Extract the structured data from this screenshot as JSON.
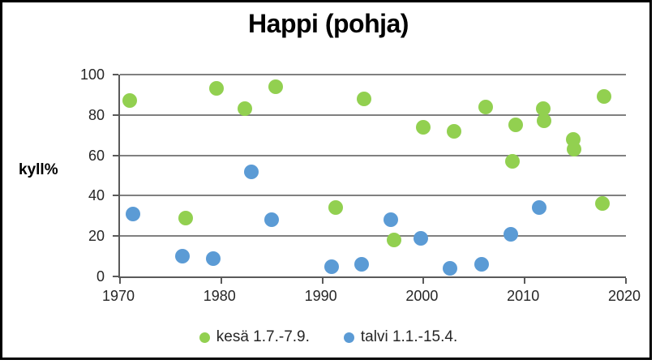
{
  "chart_data": {
    "type": "scatter",
    "title": "Happi (pohja)",
    "ylabel": "kyll%",
    "xlabel": "",
    "xlim": [
      1970,
      2020
    ],
    "ylim": [
      0,
      100
    ],
    "x_ticks": [
      1970,
      1980,
      1990,
      2000,
      2010,
      2020
    ],
    "y_ticks": [
      0,
      20,
      40,
      60,
      80,
      100
    ],
    "grid": "horizontal",
    "gridline_color": "#808080",
    "axis_color": "#595959",
    "legend_position": "bottom",
    "marker": "circle",
    "series": [
      {
        "name": "kesä 1.7.-7.9.",
        "color": "#92d050",
        "points": [
          [
            1971.0,
            87
          ],
          [
            1976.5,
            29
          ],
          [
            1979.5,
            93
          ],
          [
            1982.3,
            83
          ],
          [
            1985.4,
            94
          ],
          [
            1991.3,
            34
          ],
          [
            1994.1,
            88
          ],
          [
            1997.1,
            18
          ],
          [
            2000.0,
            74
          ],
          [
            2003.0,
            72
          ],
          [
            2006.1,
            84
          ],
          [
            2008.8,
            57
          ],
          [
            2009.1,
            75
          ],
          [
            2011.8,
            83
          ],
          [
            2011.9,
            77
          ],
          [
            2014.8,
            68
          ],
          [
            2014.9,
            63
          ],
          [
            2017.7,
            36
          ],
          [
            2017.8,
            89
          ]
        ]
      },
      {
        "name": "talvi 1.1.-15.4.",
        "color": "#5b9bd5",
        "points": [
          [
            1971.3,
            31
          ],
          [
            1976.2,
            10
          ],
          [
            1979.2,
            9
          ],
          [
            1983.0,
            52
          ],
          [
            1985.0,
            28
          ],
          [
            1990.9,
            5
          ],
          [
            1993.9,
            6
          ],
          [
            1996.8,
            28
          ],
          [
            1999.7,
            19
          ],
          [
            2002.6,
            4
          ],
          [
            2005.7,
            6
          ],
          [
            2008.6,
            21
          ],
          [
            2011.4,
            34
          ]
        ]
      }
    ]
  }
}
